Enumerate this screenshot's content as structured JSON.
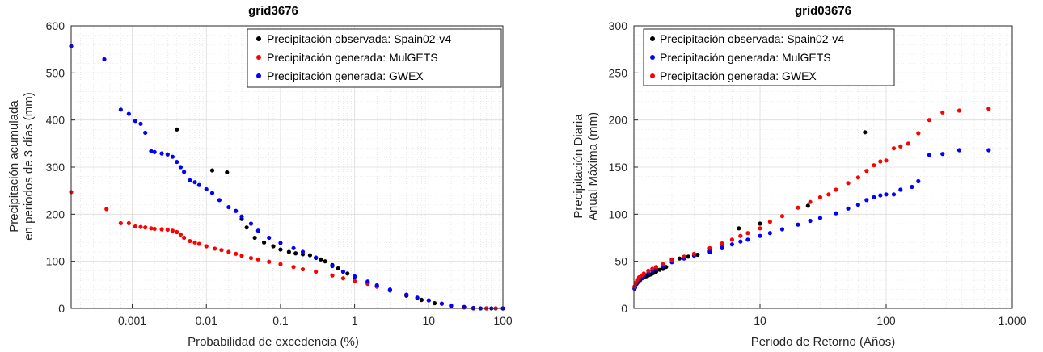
{
  "chart_data": [
    {
      "type": "scatter",
      "title": "grid3676",
      "xlabel": "Probabilidad de excedencia (%)",
      "ylabel_lines": [
        "Precipitación acumulada",
        "en periodos de 3 días (mm)"
      ],
      "x_scale": "log",
      "xlim": [
        0.00015,
        100
      ],
      "ylim": [
        0,
        600
      ],
      "x_ticks": [
        0.001,
        0.01,
        0.1,
        1,
        10,
        100
      ],
      "x_tick_labels": [
        "0.001",
        "0.01",
        "0.1",
        "1",
        "10",
        "100"
      ],
      "y_ticks": [
        0,
        100,
        200,
        300,
        400,
        500,
        600
      ],
      "y_tick_labels": [
        "0",
        "100",
        "200",
        "300",
        "400",
        "500",
        "600"
      ],
      "grid": true,
      "legend_position": "top-right",
      "series": [
        {
          "name": "Precipitación observada: Spain02-v4",
          "color": "#000000",
          "points": [
            [
              0.004,
              380
            ],
            [
              0.012,
              293
            ],
            [
              0.019,
              289
            ],
            [
              0.03,
              190
            ],
            [
              0.035,
              172
            ],
            [
              0.045,
              150
            ],
            [
              0.06,
              140
            ],
            [
              0.08,
              132
            ],
            [
              0.1,
              125
            ],
            [
              0.13,
              120
            ],
            [
              0.16,
              117
            ],
            [
              0.2,
              115
            ],
            [
              0.25,
              113
            ],
            [
              0.3,
              107
            ],
            [
              0.35,
              104
            ],
            [
              0.4,
              100
            ],
            [
              0.5,
              92
            ],
            [
              0.6,
              85
            ],
            [
              0.8,
              74
            ],
            [
              1,
              67
            ],
            [
              1.5,
              55
            ],
            [
              2,
              47
            ],
            [
              3,
              38
            ],
            [
              5,
              27
            ],
            [
              8,
              18
            ],
            [
              12,
              11
            ],
            [
              20,
              5
            ],
            [
              30,
              2
            ],
            [
              40,
              0
            ],
            [
              60,
              0
            ],
            [
              80,
              0
            ],
            [
              100,
              0
            ]
          ]
        },
        {
          "name": "Precipitación generada: MulGETS",
          "color": "#ff0000",
          "points": [
            [
              0.00015,
              247
            ],
            [
              0.00045,
              211
            ],
            [
              0.0007,
              181
            ],
            [
              0.0009,
              181
            ],
            [
              0.0011,
              174
            ],
            [
              0.0013,
              173
            ],
            [
              0.0015,
              172
            ],
            [
              0.0018,
              170
            ],
            [
              0.002,
              169
            ],
            [
              0.0025,
              168
            ],
            [
              0.003,
              167
            ],
            [
              0.0035,
              165
            ],
            [
              0.004,
              162
            ],
            [
              0.0045,
              157
            ],
            [
              0.005,
              150
            ],
            [
              0.006,
              143
            ],
            [
              0.007,
              140
            ],
            [
              0.008,
              137
            ],
            [
              0.01,
              132
            ],
            [
              0.013,
              127
            ],
            [
              0.016,
              124
            ],
            [
              0.02,
              120
            ],
            [
              0.025,
              116
            ],
            [
              0.03,
              112
            ],
            [
              0.04,
              107
            ],
            [
              0.05,
              104
            ],
            [
              0.07,
              99
            ],
            [
              0.1,
              94
            ],
            [
              0.15,
              88
            ],
            [
              0.2,
              83
            ],
            [
              0.3,
              78
            ],
            [
              0.5,
              70
            ],
            [
              0.7,
              64
            ],
            [
              1,
              58
            ],
            [
              1.5,
              52
            ],
            [
              2,
              46
            ],
            [
              3,
              39
            ],
            [
              5,
              29
            ],
            [
              7,
              23
            ],
            [
              10,
              17
            ],
            [
              15,
              10
            ],
            [
              20,
              6
            ],
            [
              30,
              2
            ],
            [
              40,
              0
            ],
            [
              60,
              0
            ],
            [
              80,
              0
            ],
            [
              100,
              0
            ]
          ]
        },
        {
          "name": "Precipitación generada: GWEX",
          "color": "#0000ff",
          "points": [
            [
              0.00015,
              557
            ],
            [
              0.00042,
              529
            ],
            [
              0.0007,
              422
            ],
            [
              0.0009,
              413
            ],
            [
              0.0011,
              398
            ],
            [
              0.0013,
              392
            ],
            [
              0.0015,
              373
            ],
            [
              0.0018,
              334
            ],
            [
              0.002,
              332
            ],
            [
              0.0025,
              329
            ],
            [
              0.003,
              327
            ],
            [
              0.0035,
              322
            ],
            [
              0.004,
              311
            ],
            [
              0.0045,
              300
            ],
            [
              0.005,
              290
            ],
            [
              0.006,
              272
            ],
            [
              0.007,
              268
            ],
            [
              0.008,
              262
            ],
            [
              0.01,
              253
            ],
            [
              0.012,
              245
            ],
            [
              0.015,
              230
            ],
            [
              0.02,
              215
            ],
            [
              0.025,
              207
            ],
            [
              0.03,
              195
            ],
            [
              0.04,
              180
            ],
            [
              0.05,
              165
            ],
            [
              0.07,
              150
            ],
            [
              0.1,
              139
            ],
            [
              0.15,
              128
            ],
            [
              0.2,
              120
            ],
            [
              0.3,
              108
            ],
            [
              0.5,
              90
            ],
            [
              0.7,
              78
            ],
            [
              1,
              68
            ],
            [
              1.5,
              57
            ],
            [
              2,
              49
            ],
            [
              3,
              40
            ],
            [
              5,
              29
            ],
            [
              7,
              22
            ],
            [
              10,
              17
            ],
            [
              15,
              10
            ],
            [
              20,
              6
            ],
            [
              30,
              3
            ],
            [
              40,
              1
            ],
            [
              50,
              0
            ],
            [
              70,
              0
            ],
            [
              100,
              0
            ]
          ]
        }
      ]
    },
    {
      "type": "scatter",
      "title": "grid03676",
      "xlabel": "Periodo de Retorno (Años)",
      "ylabel_lines": [
        "Precipitación Diaria",
        "Anual Máxima (mm)"
      ],
      "x_scale": "log",
      "xlim": [
        1,
        1000
      ],
      "ylim": [
        0,
        300
      ],
      "x_ticks": [
        10,
        100,
        1000
      ],
      "x_tick_labels": [
        "10",
        "100",
        "1.000"
      ],
      "y_ticks": [
        0,
        50,
        100,
        150,
        200,
        250,
        300
      ],
      "y_tick_labels": [
        "0",
        "50",
        "100",
        "150",
        "200",
        "250",
        "300"
      ],
      "grid": true,
      "legend_position": "top-left",
      "series": [
        {
          "name": "Precipitación observada: Spain02-v4",
          "color": "#000000",
          "points": [
            [
              1.02,
              22
            ],
            [
              1.05,
              26
            ],
            [
              1.08,
              28
            ],
            [
              1.12,
              30
            ],
            [
              1.16,
              32
            ],
            [
              1.2,
              33
            ],
            [
              1.25,
              34
            ],
            [
              1.3,
              35
            ],
            [
              1.35,
              36
            ],
            [
              1.4,
              37
            ],
            [
              1.45,
              38
            ],
            [
              1.5,
              39
            ],
            [
              1.6,
              41
            ],
            [
              1.7,
              42
            ],
            [
              1.8,
              44
            ],
            [
              2.0,
              52
            ],
            [
              2.3,
              53
            ],
            [
              2.7,
              55
            ],
            [
              3.2,
              57
            ],
            [
              4,
              60
            ],
            [
              5,
              64
            ],
            [
              6.8,
              85
            ],
            [
              10,
              90
            ],
            [
              24,
              109
            ],
            [
              68,
              187
            ]
          ]
        },
        {
          "name": "Precipitación generada: MulGETS",
          "color": "#0000ff",
          "points": [
            [
              1.01,
              21
            ],
            [
              1.03,
              25
            ],
            [
              1.06,
              28
            ],
            [
              1.1,
              31
            ],
            [
              1.15,
              33
            ],
            [
              1.2,
              35
            ],
            [
              1.3,
              37
            ],
            [
              1.4,
              40
            ],
            [
              1.5,
              42
            ],
            [
              1.7,
              45
            ],
            [
              2.0,
              49
            ],
            [
              2.5,
              53
            ],
            [
              3,
              56
            ],
            [
              4,
              61
            ],
            [
              5,
              65
            ],
            [
              6,
              68
            ],
            [
              7,
              71
            ],
            [
              8,
              73
            ],
            [
              10,
              77
            ],
            [
              12,
              80
            ],
            [
              15,
              84
            ],
            [
              20,
              89
            ],
            [
              25,
              93
            ],
            [
              30,
              96
            ],
            [
              40,
              101
            ],
            [
              50,
              106
            ],
            [
              60,
              110
            ],
            [
              70,
              115
            ],
            [
              80,
              118
            ],
            [
              90,
              120
            ],
            [
              100,
              121
            ],
            [
              115,
              121
            ],
            [
              130,
              126
            ],
            [
              160,
              129
            ],
            [
              180,
              135
            ],
            [
              220,
              163
            ],
            [
              280,
              164
            ],
            [
              380,
              168
            ],
            [
              650,
              168
            ]
          ]
        },
        {
          "name": "Precipitación generada: GWEX",
          "color": "#ff0000",
          "points": [
            [
              1.01,
              23
            ],
            [
              1.03,
              27
            ],
            [
              1.06,
              30
            ],
            [
              1.1,
              33
            ],
            [
              1.15,
              35
            ],
            [
              1.2,
              37
            ],
            [
              1.3,
              40
            ],
            [
              1.4,
              42
            ],
            [
              1.5,
              44
            ],
            [
              1.7,
              47
            ],
            [
              2.0,
              51
            ],
            [
              2.5,
              55
            ],
            [
              3,
              58
            ],
            [
              4,
              64
            ],
            [
              5,
              69
            ],
            [
              6,
              73
            ],
            [
              7,
              77
            ],
            [
              8,
              80
            ],
            [
              10,
              85
            ],
            [
              12,
              92
            ],
            [
              15,
              98
            ],
            [
              20,
              107
            ],
            [
              25,
              113
            ],
            [
              30,
              118
            ],
            [
              35,
              121
            ],
            [
              40,
              126
            ],
            [
              50,
              133
            ],
            [
              60,
              139
            ],
            [
              70,
              146
            ],
            [
              80,
              152
            ],
            [
              90,
              156
            ],
            [
              100,
              157
            ],
            [
              115,
              170
            ],
            [
              130,
              172
            ],
            [
              150,
              175
            ],
            [
              180,
              186
            ],
            [
              220,
              200
            ],
            [
              280,
              208
            ],
            [
              380,
              210
            ],
            [
              650,
              212
            ]
          ]
        }
      ]
    }
  ]
}
